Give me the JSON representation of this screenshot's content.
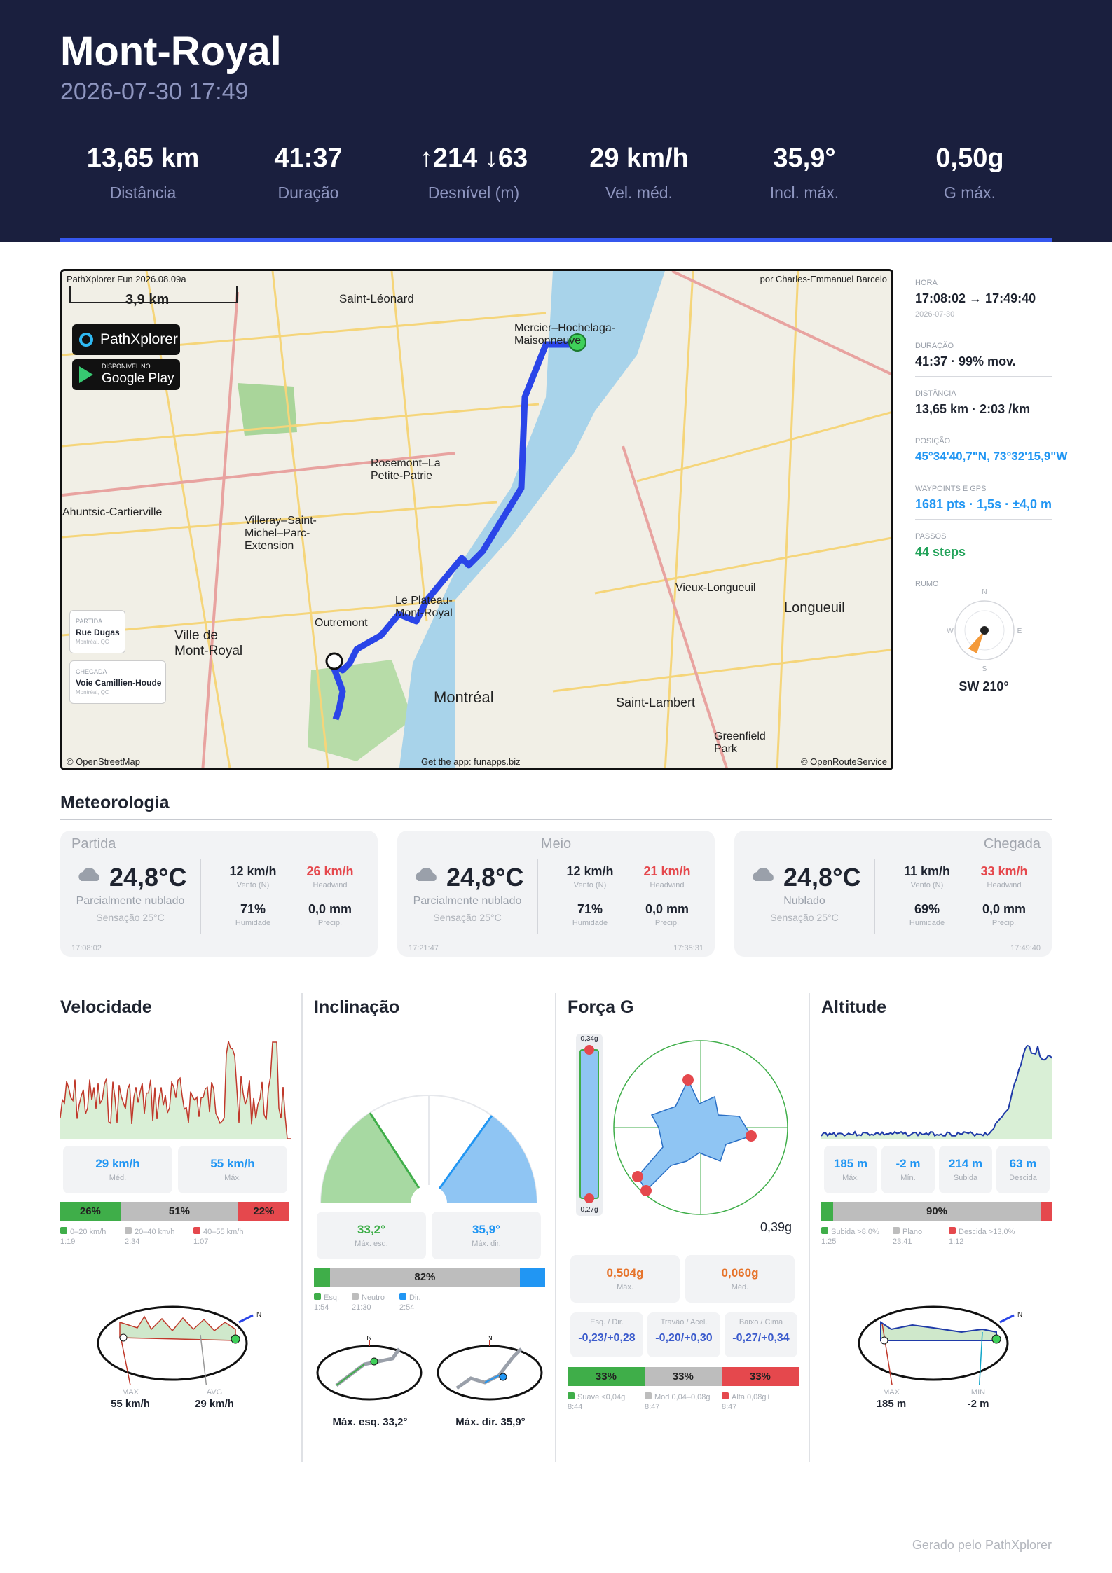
{
  "header": {
    "title": "Mont-Royal",
    "datetime": "2026-07-30 17:49",
    "stats": [
      {
        "value": "13,65 km",
        "label": "Distância"
      },
      {
        "value": "41:37",
        "label": "Duração"
      },
      {
        "value": "↑214 ↓63",
        "label": "Desnível (m)"
      },
      {
        "value": "29 km/h",
        "label": "Vel. méd."
      },
      {
        "value": "35,9°",
        "label": "Incl. máx."
      },
      {
        "value": "0,50g",
        "label": "G máx."
      }
    ]
  },
  "map": {
    "top_left_label": "PathXplorer Fun 2026.08.09a",
    "scale": "3,9 km",
    "author": "por Charles-Emmanuel Barcelo",
    "badge_app": "PathXplorer",
    "badge_store_small": "DISPONÍVEL NO",
    "badge_store": "Google Play",
    "start_kicker": "PARTIDA",
    "start_name": "Rue Dugas",
    "start_region": "Montréal, QC",
    "end_kicker": "CHEGADA",
    "end_name": "Voie Camillien-Houde",
    "end_region": "Montréal, QC",
    "credit_left": "© OpenStreetMap",
    "credit_center": "Get the app: funapps.biz",
    "credit_right": "© OpenRouteService",
    "places": [
      "Saint-Léonard",
      "Mercier–Hochelaga-Maisonneuve",
      "Rosemont–La Petite-Patrie",
      "Villeray–Saint-Michel–Parc-Extension",
      "Ahuntsic-Cartierville",
      "Le Plateau-Mont-Royal",
      "Outremont",
      "Ville de Mont-Royal",
      "Montréal",
      "Vieux-Longueuil",
      "Longueuil",
      "Saint-Lambert",
      "Greenfield Park"
    ]
  },
  "details": {
    "hora_label": "HORA",
    "hora": "17:08:02 → 17:49:40",
    "hora_date": "2026-07-30",
    "duracao_label": "DURAÇÃO",
    "duracao": "41:37 · 99% mov.",
    "distancia_label": "DISTÂNCIA",
    "distancia": "13,65 km · 2:03 /km",
    "posicao_label": "POSIÇÃO",
    "posicao": "45°34'40,7\"N, 73°32'15,9\"W",
    "waypoints_label": "WAYPOINTS E GPS",
    "waypoints": "1681 pts · 1,5s · ±4,0 m",
    "passos_label": "PASSOS",
    "passos": "44 steps",
    "rumo_label": "RUMO",
    "rumo": "SW  210°",
    "compass": {
      "n": "N",
      "s": "S",
      "e": "E",
      "w": "W",
      "heading_deg": 210
    }
  },
  "weather": {
    "title": "Meteorologia",
    "cards": [
      {
        "head": "Partida",
        "temp": "24,8°C",
        "desc": "Parcialmente nublado",
        "feels": "Sensação 25°C",
        "wind": "12 km/h",
        "wind_label": "Vento (N)",
        "head_wind": "26 km/h",
        "head_wind_label": "Headwind",
        "humidity": "71%",
        "humidity_label": "Humidade",
        "precip": "0,0 mm",
        "precip_label": "Precip.",
        "t1": "17:08:02",
        "t2": ""
      },
      {
        "head": "Meio",
        "temp": "24,8°C",
        "desc": "Parcialmente nublado",
        "feels": "Sensação 25°C",
        "wind": "12 km/h",
        "wind_label": "Vento (N)",
        "head_wind": "21 km/h",
        "head_wind_label": "Headwind",
        "humidity": "71%",
        "humidity_label": "Humidade",
        "precip": "0,0 mm",
        "precip_label": "Precip.",
        "t1": "17:21:47",
        "t2": "17:35:31"
      },
      {
        "head": "Chegada",
        "temp": "24,8°C",
        "desc": "Nublado",
        "feels": "Sensação 25°C",
        "wind": "11 km/h",
        "wind_label": "Vento (N)",
        "head_wind": "33 km/h",
        "head_wind_label": "Headwind",
        "humidity": "69%",
        "humidity_label": "Humidade",
        "precip": "0,0 mm",
        "precip_label": "Precip.",
        "t1": "",
        "t2": "17:49:40"
      }
    ]
  },
  "speed": {
    "title": "Velocidade",
    "avg": "29 km/h",
    "avg_label": "Méd.",
    "max": "55 km/h",
    "max_label": "Máx.",
    "dist": [
      {
        "pct": "26%",
        "frac": 0.26,
        "label": "0–20 km/h",
        "time": "1:19",
        "color": "#3fae49"
      },
      {
        "pct": "51%",
        "frac": 0.51,
        "label": "20–40 km/h",
        "time": "2:34",
        "color": "#bdbdbd"
      },
      {
        "pct": "22%",
        "frac": 0.22,
        "label": "40–55 km/h",
        "time": "1:07",
        "color": "#e5484d"
      }
    ],
    "mini_left_k": "MAX",
    "mini_left_v": "55 km/h",
    "mini_right_k": "AVG",
    "mini_right_v": "29 km/h"
  },
  "incline": {
    "title": "Inclinação",
    "left": "33,2°",
    "left_label": "Máx. esq.",
    "right": "35,9°",
    "right_label": "Máx. dir.",
    "dist": [
      {
        "pct": "",
        "frac": 0.07,
        "label": "Esq.",
        "time": "1:54",
        "color": "#3fae49"
      },
      {
        "pct": "82%",
        "frac": 0.82,
        "label": "Neutro",
        "time": "21:30",
        "color": "#bdbdbd"
      },
      {
        "pct": "",
        "frac": 0.11,
        "label": "Dir.",
        "time": "2:54",
        "color": "#2196f3"
      }
    ],
    "mini_left": "Máx. esq.  33,2°",
    "mini_right": "Máx. dir.  35,9°",
    "north": "N"
  },
  "gforce": {
    "title": "Força G",
    "bar_top": "0,34g",
    "bar_bottom": "0,27g",
    "current": "0,39g",
    "max": "0,504g",
    "max_label": "Máx.",
    "avg": "0,060g",
    "avg_label": "Méd.",
    "axes": [
      {
        "label": "Esq. / Dir.",
        "value": "-0,23/+0,28"
      },
      {
        "label": "Travão / Acel.",
        "value": "-0,20/+0,30"
      },
      {
        "label": "Baixo / Cima",
        "value": "-0,27/+0,34"
      }
    ],
    "dist": [
      {
        "pct": "33%",
        "frac": 0.333,
        "label": "Suave <0,04g",
        "time": "8:44",
        "color": "#3fae49"
      },
      {
        "pct": "33%",
        "frac": 0.333,
        "label": "Mod 0,04–0,08g",
        "time": "8:47",
        "color": "#bdbdbd"
      },
      {
        "pct": "33%",
        "frac": 0.334,
        "label": "Alta 0,08g+",
        "time": "8:47",
        "color": "#e5484d"
      }
    ]
  },
  "altitude": {
    "title": "Altitude",
    "boxes": [
      {
        "value": "185 m",
        "label": "Máx."
      },
      {
        "value": "-2 m",
        "label": "Mín."
      },
      {
        "value": "214 m",
        "label": "Subida"
      },
      {
        "value": "63 m",
        "label": "Descida"
      }
    ],
    "dist": [
      {
        "pct": "",
        "frac": 0.05,
        "label": "Subida >8,0%",
        "time": "1:25",
        "color": "#3fae49"
      },
      {
        "pct": "90%",
        "frac": 0.9,
        "label": "Plano",
        "time": "23:41",
        "color": "#bdbdbd"
      },
      {
        "pct": "",
        "frac": 0.05,
        "label": "Descida >13,0%",
        "time": "1:12",
        "color": "#e5484d"
      }
    ],
    "mini_left_k": "MAX",
    "mini_left_v": "185 m",
    "mini_right_k": "MIN",
    "mini_right_v": "-2 m"
  },
  "footer": "Gerado pelo PathXplorer"
}
